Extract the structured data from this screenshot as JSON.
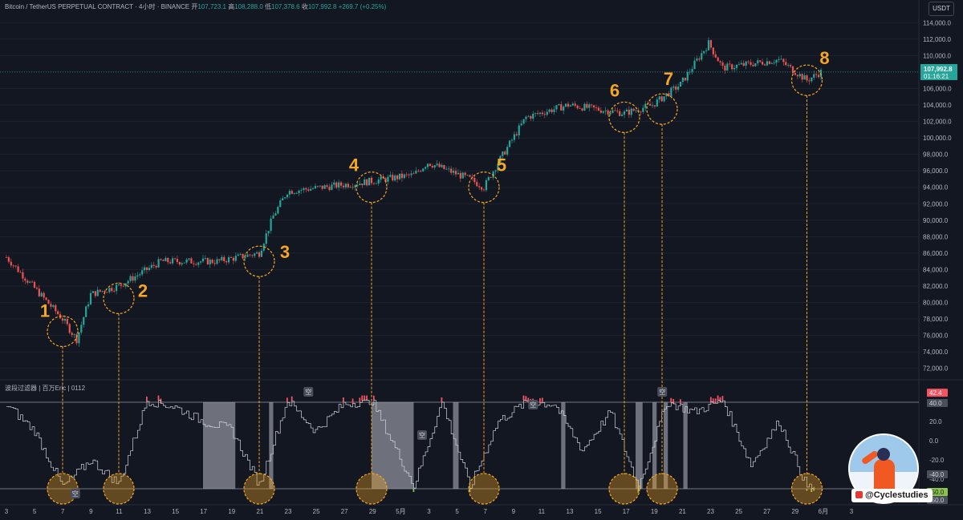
{
  "header": {
    "symbol": "Bitcoin / TetherUS PERPETUAL CONTRACT",
    "interval": "4小时",
    "exchange": "BINANCE",
    "open_label": "开",
    "open": "107,723.1",
    "high_label": "高",
    "high": "108,288.0",
    "low_label": "低",
    "low": "107,378.6",
    "close_label": "收",
    "close": "107,992.8",
    "change": "+269.7 (+0.25%)"
  },
  "currency_button": "USDT",
  "indicator": {
    "title": "波段过滤器 | 百万Eric | 0112"
  },
  "price_tag": {
    "price": "107,992.8",
    "countdown": "01:16:21"
  },
  "watermark": {
    "handle": "@Cyclestudies"
  },
  "markers": [
    {
      "label": "1"
    },
    {
      "label": "2"
    },
    {
      "label": "3"
    },
    {
      "label": "4"
    },
    {
      "label": "5"
    },
    {
      "label": "6"
    },
    {
      "label": "7"
    },
    {
      "label": "8"
    }
  ],
  "signal_tags": [
    "空",
    "空",
    "空",
    "空",
    "空"
  ],
  "colors": {
    "background": "#131722",
    "up_candle": "#26a69a",
    "down_candle": "#ef5350",
    "marker": "#f5a623",
    "oscillator_line": "#d1d4dc",
    "overbought_bar": "#f7525f",
    "oversold_bar": "#8bc34a",
    "shade": "#9598a1"
  },
  "chart_data": [
    {
      "type": "candlestick",
      "series": [
        {
          "name": "Bitcoin / TetherUS PERPETUAL CONTRACT"
        }
      ],
      "y_axis_ticks": [
        "114,000.0",
        "112,000.0",
        "110,000.0",
        "108,000.0",
        "106,000.0",
        "104,000.0",
        "102,000.0",
        "100,000.0",
        "98,000.0",
        "96,000.0",
        "94,000.0",
        "92,000.0",
        "90,000.0",
        "88,000.0",
        "86,000.0",
        "84,000.0",
        "82,000.0",
        "80,000.0",
        "78,000.0",
        "76,000.0",
        "74,000.0",
        "72,000.0"
      ],
      "ylim": [
        71000,
        115000
      ],
      "x_axis_ticks": [
        "3",
        "5",
        "7",
        "9",
        "11",
        "13",
        "15",
        "17",
        "19",
        "21",
        "23",
        "25",
        "27",
        "29",
        "5月",
        "3",
        "5",
        "7",
        "9",
        "11",
        "13",
        "15",
        "17",
        "19",
        "21",
        "23",
        "25",
        "27",
        "29",
        "6月",
        "3"
      ],
      "x": [
        "Apr 3",
        "Apr 7",
        "Apr 8",
        "Apr 9",
        "Apr 11",
        "Apr 14",
        "Apr 18",
        "Apr 21",
        "Apr 22",
        "Apr 23",
        "Apr 28",
        "May 1",
        "May 2",
        "May 5",
        "May 6",
        "May 7",
        "May 9",
        "May 12",
        "May 16",
        "May 18",
        "May 20",
        "May 22",
        "May 23",
        "May 27",
        "May 29",
        "May 30"
      ],
      "values": [
        85500,
        78000,
        75500,
        81000,
        82000,
        85000,
        85000,
        86000,
        90500,
        93500,
        94500,
        95500,
        97000,
        95000,
        94000,
        97000,
        102500,
        104000,
        103000,
        104000,
        106500,
        111500,
        108500,
        109500,
        107000,
        108000
      ],
      "marked_swing_lows": [
        {
          "label": "1",
          "x": "Apr 7",
          "price": 76500
        },
        {
          "label": "2",
          "x": "Apr 11",
          "price": 80500
        },
        {
          "label": "3",
          "x": "Apr 21",
          "price": 85000
        },
        {
          "label": "4",
          "x": "Apr 29",
          "price": 94000
        },
        {
          "label": "5",
          "x": "May 6",
          "price": 94000
        },
        {
          "label": "6",
          "x": "May 16",
          "price": 102500
        },
        {
          "label": "7",
          "x": "May 18",
          "price": 103500
        },
        {
          "label": "8",
          "x": "May 29",
          "price": 107000
        }
      ]
    },
    {
      "type": "line",
      "series": [
        {
          "name": "波段过滤器 | 百万Eric | 0112"
        }
      ],
      "y_axis_ticks": [
        "40.0",
        "20.0",
        "0.0",
        "-20.0",
        "-40.0",
        "-60.0"
      ],
      "level_tags": [
        "42.4",
        "40.0",
        "-40.0",
        "-50.0",
        "-50.0"
      ],
      "ylim": [
        -60,
        50
      ],
      "upper_band": 40,
      "lower_band": -50,
      "x": [
        "Apr 3",
        "Apr 5",
        "Apr 7",
        "Apr 9",
        "Apr 11",
        "Apr 13",
        "Apr 15",
        "Apr 17",
        "Apr 19",
        "Apr 21",
        "Apr 23",
        "Apr 25",
        "Apr 27",
        "Apr 29",
        "May 1",
        "May 3",
        "May 5",
        "May 7",
        "May 9",
        "May 11",
        "May 13",
        "May 15",
        "May 17",
        "May 19",
        "May 21",
        "May 23",
        "May 25",
        "May 27",
        "May 29"
      ],
      "values": [
        38,
        10,
        -48,
        -20,
        -45,
        42,
        35,
        20,
        12,
        -46,
        42,
        10,
        38,
        42,
        -47,
        40,
        -48,
        20,
        40,
        38,
        -10,
        30,
        -48,
        40,
        30,
        42,
        -25,
        20,
        -48
      ]
    }
  ]
}
